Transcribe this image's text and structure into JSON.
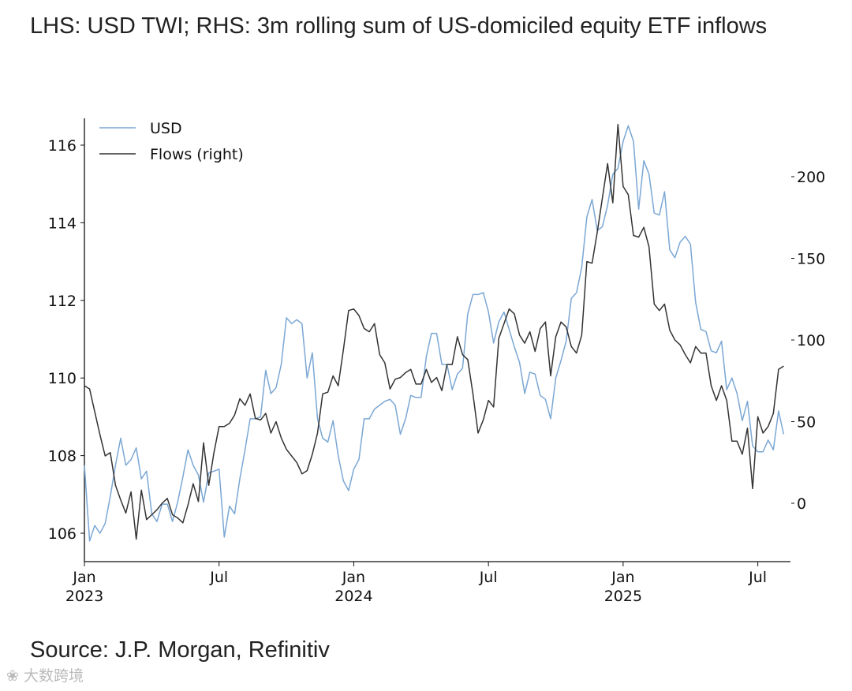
{
  "title": "LHS: USD TWI; RHS: 3m rolling sum of US-domiciled equity ETF inflows",
  "source": "Source: J.P. Morgan, Refinitiv",
  "watermark": "大数跨境",
  "chart_data": {
    "type": "line",
    "title": "LHS: USD TWI; RHS: 3m rolling sum of US-domiciled equity ETF inflows",
    "xlabel": "",
    "x_unit": "weeks since Jan 2023",
    "xlim": [
      0,
      136
    ],
    "x_ticks": [
      {
        "w": 0,
        "label": "Jan",
        "sub": "2023"
      },
      {
        "w": 26,
        "label": "Jul",
        "sub": ""
      },
      {
        "w": 52,
        "label": "Jan",
        "sub": "2024"
      },
      {
        "w": 78,
        "label": "Jul",
        "sub": ""
      },
      {
        "w": 104,
        "label": "Jan",
        "sub": "2025"
      },
      {
        "w": 130,
        "label": "Jul",
        "sub": ""
      }
    ],
    "y_left": {
      "label": "USD TWI",
      "lim": [
        105.4,
        116.8
      ],
      "ticks": [
        106,
        108,
        110,
        112,
        114,
        116
      ]
    },
    "y_right": {
      "label": "Flows",
      "lim": [
        -36,
        240
      ],
      "ticks": [
        0,
        50,
        100,
        150,
        200
      ]
    },
    "legend": {
      "placement": "top-left",
      "entries": [
        "USD",
        "Flows (right)"
      ]
    },
    "colors": {
      "usd": "#7ba7d4",
      "flows": "#333333"
    },
    "grid": false,
    "series": [
      {
        "name": "USD",
        "axis": "left",
        "values": [
          107.75,
          105.8,
          106.2,
          106.0,
          106.25,
          106.95,
          107.75,
          108.45,
          107.75,
          107.9,
          108.2,
          107.4,
          107.6,
          106.5,
          106.3,
          106.75,
          106.75,
          106.3,
          106.8,
          107.45,
          108.15,
          107.75,
          107.5,
          106.8,
          107.55,
          107.6,
          107.65,
          105.9,
          106.7,
          106.5,
          107.4,
          108.15,
          108.95,
          108.95,
          109.0,
          110.2,
          109.6,
          109.75,
          110.35,
          111.55,
          111.4,
          111.5,
          111.4,
          110.0,
          110.65,
          108.95,
          108.45,
          108.35,
          108.9,
          108.0,
          107.35,
          107.1,
          107.65,
          107.9,
          108.95,
          108.95,
          109.2,
          109.3,
          109.4,
          109.45,
          109.3,
          108.55,
          108.95,
          109.55,
          109.5,
          109.5,
          110.55,
          111.15,
          111.15,
          110.35,
          110.35,
          109.7,
          110.1,
          110.25,
          111.65,
          112.15,
          112.15,
          112.2,
          111.7,
          110.9,
          111.45,
          111.7,
          111.25,
          110.8,
          110.4,
          109.6,
          110.15,
          110.1,
          109.55,
          109.45,
          108.95,
          110.0,
          110.45,
          110.95,
          112.05,
          112.2,
          112.85,
          114.15,
          114.6,
          113.8,
          113.9,
          114.45,
          115.25,
          115.4,
          116.1,
          116.5,
          116.1,
          114.35,
          115.6,
          115.25,
          114.25,
          114.2,
          114.8,
          113.3,
          113.1,
          113.5,
          113.65,
          113.45,
          111.95,
          111.25,
          111.2,
          110.7,
          110.65,
          110.95,
          109.7,
          110.0,
          109.6,
          108.9,
          109.4,
          108.25,
          108.1,
          108.1,
          108.4,
          108.15,
          109.15,
          108.55
        ]
      },
      {
        "name": "Flows (right)",
        "axis": "right",
        "values": [
          72,
          70,
          56,
          42,
          29,
          31,
          11,
          2,
          -6,
          7,
          -22,
          8,
          -10,
          -7,
          -4,
          0,
          3,
          -7,
          -9,
          -12,
          -1,
          12,
          1,
          37,
          11,
          31,
          47,
          47,
          49,
          54,
          64,
          60,
          67,
          52,
          51,
          55,
          43,
          50,
          40,
          33,
          29,
          25,
          18,
          20,
          30,
          43,
          67,
          68,
          78,
          72,
          94,
          118,
          119,
          115,
          107,
          105,
          110,
          91,
          86,
          70,
          76,
          77,
          80,
          82,
          73,
          73,
          82,
          74,
          77,
          69,
          85,
          85,
          102,
          91,
          88,
          67,
          43,
          51,
          63,
          59,
          101,
          110,
          119,
          116,
          103,
          98,
          105,
          93,
          107,
          111,
          78,
          102,
          111,
          108,
          96,
          92,
          103,
          148,
          147,
          166,
          187,
          208,
          184,
          232,
          194,
          189,
          164,
          163,
          169,
          157,
          122,
          118,
          122,
          106,
          100,
          97,
          91,
          86,
          96,
          92,
          92,
          72,
          63,
          72,
          63,
          38,
          38,
          30,
          46,
          9,
          53,
          43,
          47,
          55,
          82,
          84
        ]
      }
    ]
  }
}
